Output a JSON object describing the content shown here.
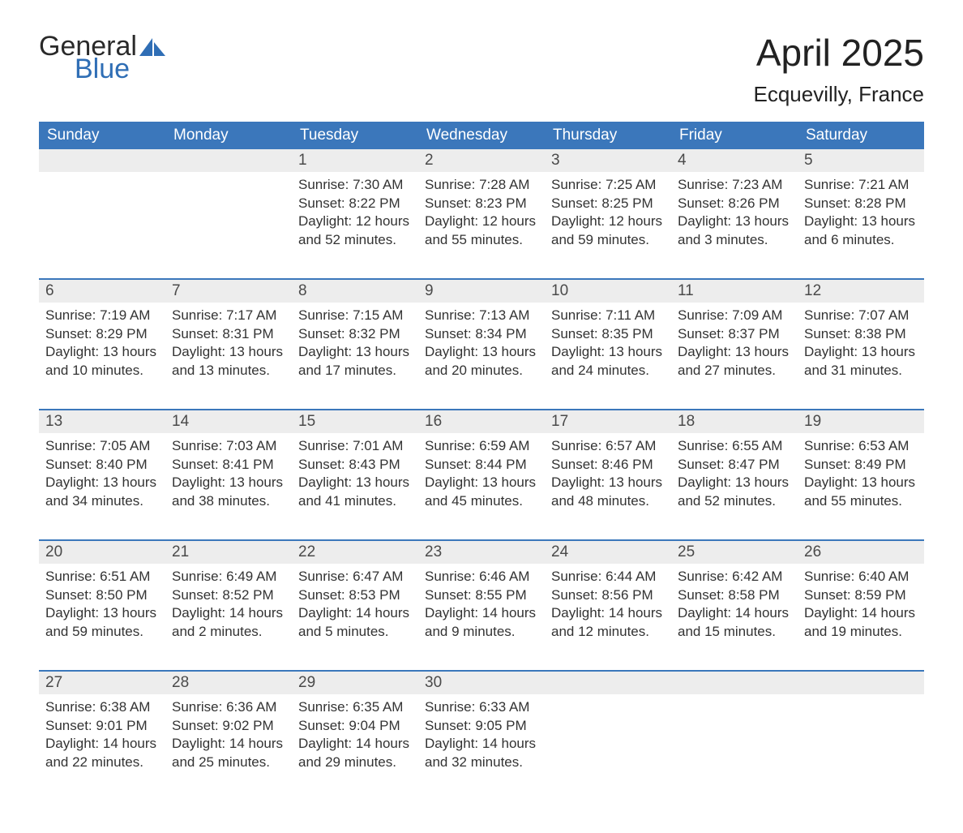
{
  "logo": {
    "text_top": "General",
    "text_bottom": "Blue",
    "accent_color": "#2f6eb5"
  },
  "title": "April 2025",
  "location": "Ecquevilly, France",
  "header_bg": "#3b77bb",
  "daynum_bg": "#ededed",
  "days_of_week": [
    "Sunday",
    "Monday",
    "Tuesday",
    "Wednesday",
    "Thursday",
    "Friday",
    "Saturday"
  ],
  "weeks": [
    {
      "cells": [
        {
          "day": "",
          "lines": []
        },
        {
          "day": "",
          "lines": []
        },
        {
          "day": "1",
          "lines": [
            "Sunrise: 7:30 AM",
            "Sunset: 8:22 PM",
            "Daylight: 12 hours and 52 minutes."
          ]
        },
        {
          "day": "2",
          "lines": [
            "Sunrise: 7:28 AM",
            "Sunset: 8:23 PM",
            "Daylight: 12 hours and 55 minutes."
          ]
        },
        {
          "day": "3",
          "lines": [
            "Sunrise: 7:25 AM",
            "Sunset: 8:25 PM",
            "Daylight: 12 hours and 59 minutes."
          ]
        },
        {
          "day": "4",
          "lines": [
            "Sunrise: 7:23 AM",
            "Sunset: 8:26 PM",
            "Daylight: 13 hours and 3 minutes."
          ]
        },
        {
          "day": "5",
          "lines": [
            "Sunrise: 7:21 AM",
            "Sunset: 8:28 PM",
            "Daylight: 13 hours and 6 minutes."
          ]
        }
      ]
    },
    {
      "cells": [
        {
          "day": "6",
          "lines": [
            "Sunrise: 7:19 AM",
            "Sunset: 8:29 PM",
            "Daylight: 13 hours and 10 minutes."
          ]
        },
        {
          "day": "7",
          "lines": [
            "Sunrise: 7:17 AM",
            "Sunset: 8:31 PM",
            "Daylight: 13 hours and 13 minutes."
          ]
        },
        {
          "day": "8",
          "lines": [
            "Sunrise: 7:15 AM",
            "Sunset: 8:32 PM",
            "Daylight: 13 hours and 17 minutes."
          ]
        },
        {
          "day": "9",
          "lines": [
            "Sunrise: 7:13 AM",
            "Sunset: 8:34 PM",
            "Daylight: 13 hours and 20 minutes."
          ]
        },
        {
          "day": "10",
          "lines": [
            "Sunrise: 7:11 AM",
            "Sunset: 8:35 PM",
            "Daylight: 13 hours and 24 minutes."
          ]
        },
        {
          "day": "11",
          "lines": [
            "Sunrise: 7:09 AM",
            "Sunset: 8:37 PM",
            "Daylight: 13 hours and 27 minutes."
          ]
        },
        {
          "day": "12",
          "lines": [
            "Sunrise: 7:07 AM",
            "Sunset: 8:38 PM",
            "Daylight: 13 hours and 31 minutes."
          ]
        }
      ]
    },
    {
      "cells": [
        {
          "day": "13",
          "lines": [
            "Sunrise: 7:05 AM",
            "Sunset: 8:40 PM",
            "Daylight: 13 hours and 34 minutes."
          ]
        },
        {
          "day": "14",
          "lines": [
            "Sunrise: 7:03 AM",
            "Sunset: 8:41 PM",
            "Daylight: 13 hours and 38 minutes."
          ]
        },
        {
          "day": "15",
          "lines": [
            "Sunrise: 7:01 AM",
            "Sunset: 8:43 PM",
            "Daylight: 13 hours and 41 minutes."
          ]
        },
        {
          "day": "16",
          "lines": [
            "Sunrise: 6:59 AM",
            "Sunset: 8:44 PM",
            "Daylight: 13 hours and 45 minutes."
          ]
        },
        {
          "day": "17",
          "lines": [
            "Sunrise: 6:57 AM",
            "Sunset: 8:46 PM",
            "Daylight: 13 hours and 48 minutes."
          ]
        },
        {
          "day": "18",
          "lines": [
            "Sunrise: 6:55 AM",
            "Sunset: 8:47 PM",
            "Daylight: 13 hours and 52 minutes."
          ]
        },
        {
          "day": "19",
          "lines": [
            "Sunrise: 6:53 AM",
            "Sunset: 8:49 PM",
            "Daylight: 13 hours and 55 minutes."
          ]
        }
      ]
    },
    {
      "cells": [
        {
          "day": "20",
          "lines": [
            "Sunrise: 6:51 AM",
            "Sunset: 8:50 PM",
            "Daylight: 13 hours and 59 minutes."
          ]
        },
        {
          "day": "21",
          "lines": [
            "Sunrise: 6:49 AM",
            "Sunset: 8:52 PM",
            "Daylight: 14 hours and 2 minutes."
          ]
        },
        {
          "day": "22",
          "lines": [
            "Sunrise: 6:47 AM",
            "Sunset: 8:53 PM",
            "Daylight: 14 hours and 5 minutes."
          ]
        },
        {
          "day": "23",
          "lines": [
            "Sunrise: 6:46 AM",
            "Sunset: 8:55 PM",
            "Daylight: 14 hours and 9 minutes."
          ]
        },
        {
          "day": "24",
          "lines": [
            "Sunrise: 6:44 AM",
            "Sunset: 8:56 PM",
            "Daylight: 14 hours and 12 minutes."
          ]
        },
        {
          "day": "25",
          "lines": [
            "Sunrise: 6:42 AM",
            "Sunset: 8:58 PM",
            "Daylight: 14 hours and 15 minutes."
          ]
        },
        {
          "day": "26",
          "lines": [
            "Sunrise: 6:40 AM",
            "Sunset: 8:59 PM",
            "Daylight: 14 hours and 19 minutes."
          ]
        }
      ]
    },
    {
      "cells": [
        {
          "day": "27",
          "lines": [
            "Sunrise: 6:38 AM",
            "Sunset: 9:01 PM",
            "Daylight: 14 hours and 22 minutes."
          ]
        },
        {
          "day": "28",
          "lines": [
            "Sunrise: 6:36 AM",
            "Sunset: 9:02 PM",
            "Daylight: 14 hours and 25 minutes."
          ]
        },
        {
          "day": "29",
          "lines": [
            "Sunrise: 6:35 AM",
            "Sunset: 9:04 PM",
            "Daylight: 14 hours and 29 minutes."
          ]
        },
        {
          "day": "30",
          "lines": [
            "Sunrise: 6:33 AM",
            "Sunset: 9:05 PM",
            "Daylight: 14 hours and 32 minutes."
          ]
        },
        {
          "day": "",
          "lines": []
        },
        {
          "day": "",
          "lines": []
        },
        {
          "day": "",
          "lines": []
        }
      ]
    }
  ]
}
